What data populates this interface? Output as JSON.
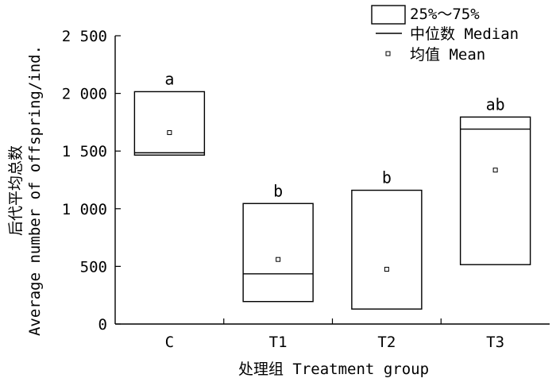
{
  "chart_data": {
    "type": "box",
    "xlabel": "处理组 Treatment group",
    "ylabel_cn": "后代平均总数",
    "ylabel_en": "Average number of offspring/ind.",
    "ylim": [
      0,
      2500
    ],
    "yticks": [
      {
        "value": 0,
        "label": "0"
      },
      {
        "value": 500,
        "label": "500"
      },
      {
        "value": 1000,
        "label": "1 000"
      },
      {
        "value": 1500,
        "label": "1 500"
      },
      {
        "value": 2000,
        "label": "2 000"
      },
      {
        "value": 2500,
        "label": "2 500"
      }
    ],
    "categories": [
      "C",
      "T1",
      "T2",
      "T3"
    ],
    "groups": [
      {
        "category": "C",
        "q1": 1465,
        "q3": 2015,
        "median": 1485,
        "mean": 1660,
        "letter": "a"
      },
      {
        "category": "T1",
        "q1": 195,
        "q3": 1045,
        "median": 435,
        "mean": 560,
        "letter": "b"
      },
      {
        "category": "T2",
        "q1": 130,
        "q3": 1160,
        "median": null,
        "mean": 475,
        "letter": "b"
      },
      {
        "category": "T3",
        "q1": 515,
        "q3": 1795,
        "median": 1690,
        "mean": 1335,
        "letter": "ab"
      }
    ],
    "legend": {
      "position": "top-right",
      "box_label": "25%～75%",
      "median_label": "中位数 Median",
      "mean_label": "均值 Mean"
    }
  }
}
